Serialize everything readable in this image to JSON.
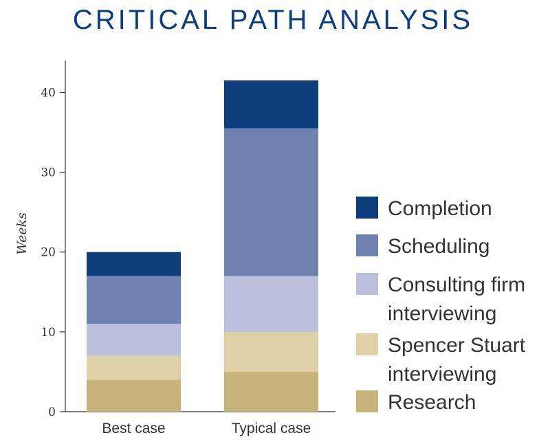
{
  "chart_data": {
    "type": "bar",
    "stacked": true,
    "title": "CRITICAL PATH ANALYSIS",
    "xlabel": "",
    "ylabel": "Weeks",
    "categories": [
      "Best case",
      "Typical case"
    ],
    "yticks": [
      "0",
      "10",
      "20",
      "30",
      "40"
    ],
    "ylim": [
      0,
      44
    ],
    "grid": false,
    "legend_position": "right",
    "series": [
      {
        "name": "Research",
        "color": "#c8b47a",
        "values": [
          4,
          5
        ]
      },
      {
        "name": "Spencer Stuart interviewing",
        "color": "#dfd1a7",
        "values": [
          3,
          5
        ]
      },
      {
        "name": "Consulting firm interviewing",
        "color": "#bac0dc",
        "values": [
          4,
          7
        ]
      },
      {
        "name": "Scheduling",
        "color": "#6f82b0",
        "values": [
          6,
          18.5
        ]
      },
      {
        "name": "Completion",
        "color": "#0d3d7a",
        "values": [
          3,
          6
        ]
      }
    ],
    "legend": [
      {
        "lines": [
          "Completion"
        ],
        "color": "#0d3d7a"
      },
      {
        "lines": [
          "Scheduling"
        ],
        "color": "#6f82b0"
      },
      {
        "lines": [
          "Consulting firm",
          "interviewing"
        ],
        "color": "#bac0dc"
      },
      {
        "lines": [
          "Spencer Stuart",
          "interviewing"
        ],
        "color": "#dfd1a7"
      },
      {
        "lines": [
          "Research"
        ],
        "color": "#c8b47a"
      }
    ]
  }
}
